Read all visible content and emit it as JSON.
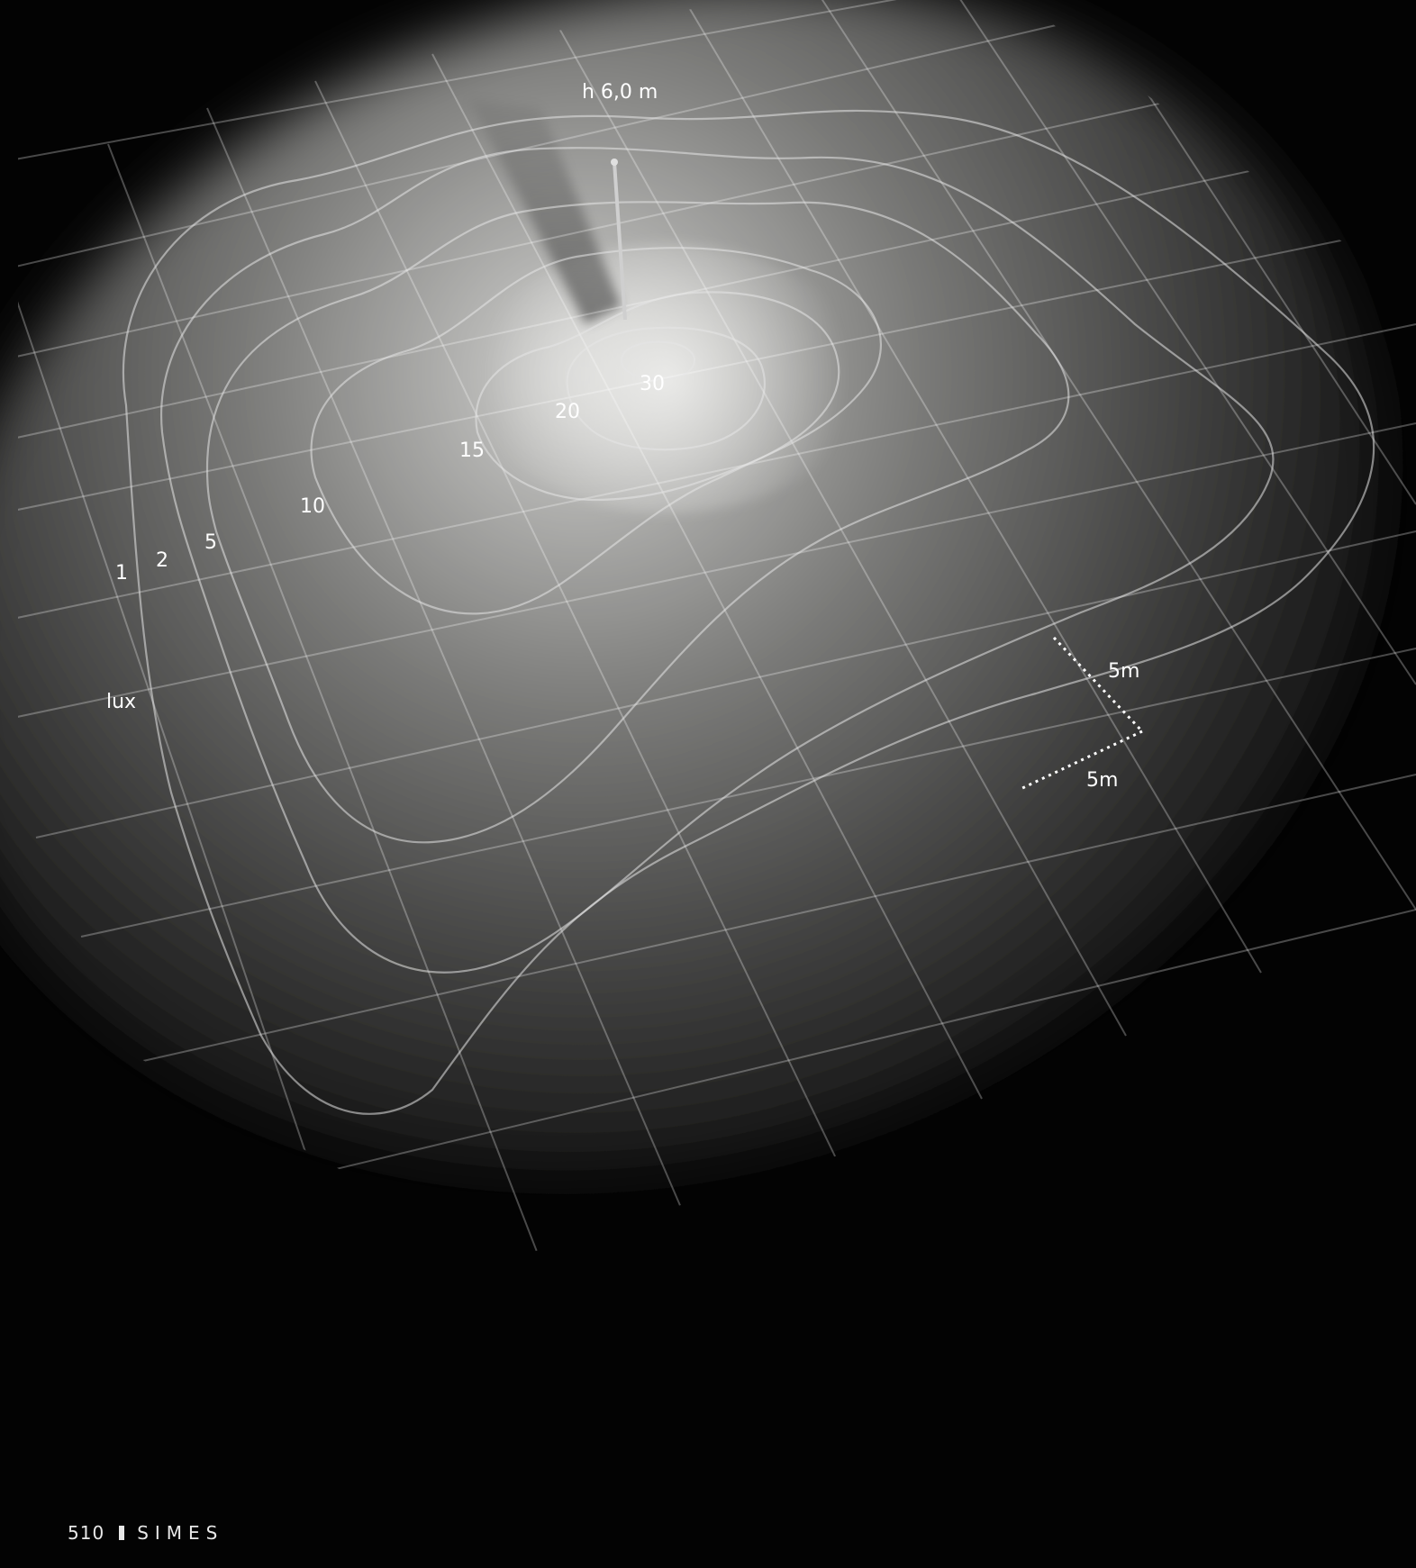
{
  "diagram": {
    "height_label": "h 6,0 m",
    "unit_label": "lux",
    "scale_labels": [
      "5m",
      "5m"
    ],
    "contours": [
      {
        "value": "1"
      },
      {
        "value": "2"
      },
      {
        "value": "5"
      },
      {
        "value": "10"
      },
      {
        "value": "15"
      },
      {
        "value": "20"
      },
      {
        "value": "30"
      }
    ]
  },
  "footer": {
    "page_number": "510",
    "brand": "SIMES"
  }
}
